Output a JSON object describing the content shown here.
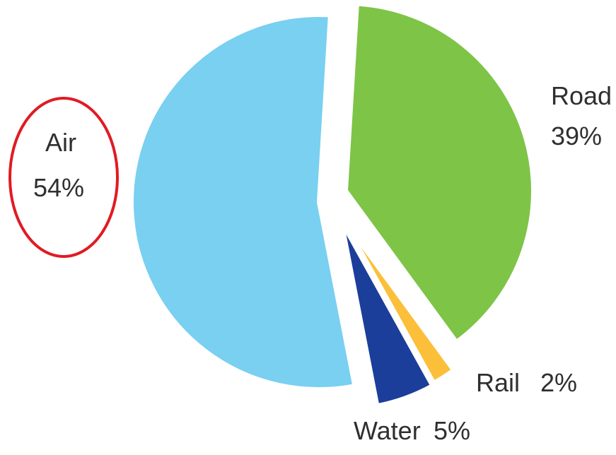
{
  "chart_data": {
    "type": "pie",
    "title": "",
    "slices": [
      {
        "label": "Road",
        "value_text": "39%",
        "value": 39,
        "color": "#7dc447"
      },
      {
        "label": "Rail",
        "value_text": "2%",
        "value": 2,
        "color": "#fbbf3a"
      },
      {
        "label": "Water",
        "value_text": "5%",
        "value": 5,
        "color": "#1b3e9a"
      },
      {
        "label": "Air",
        "value_text": "54%",
        "value": 54,
        "color": "#79d0f0"
      }
    ],
    "exploded": true,
    "highlight": {
      "label": "Air",
      "style": "red-ellipse-outline",
      "color": "#e01b24"
    }
  }
}
